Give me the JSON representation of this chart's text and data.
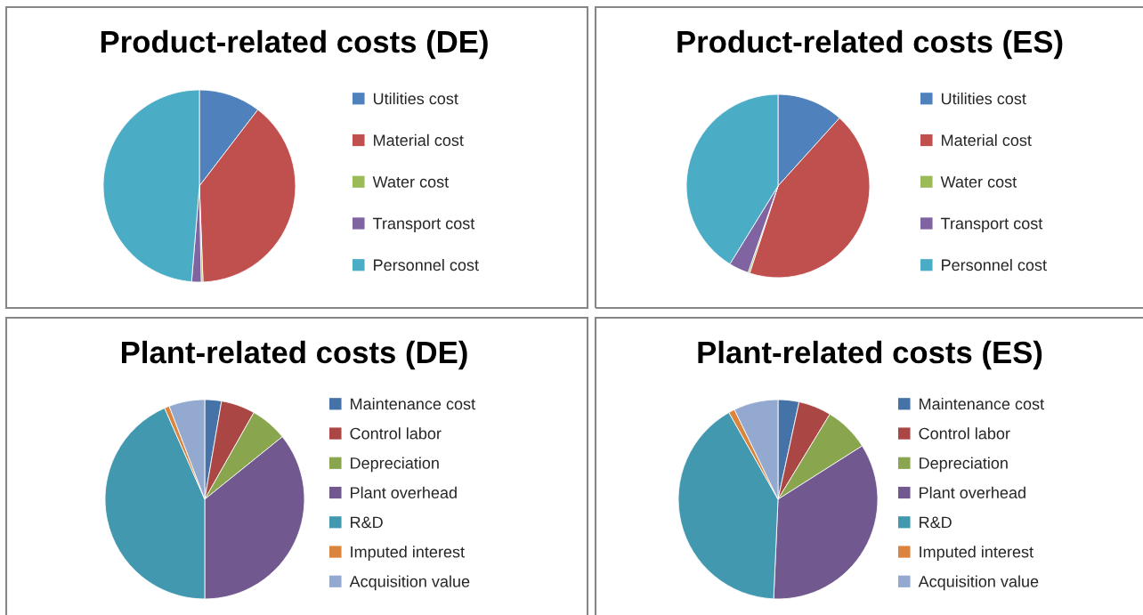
{
  "chart_data": [
    {
      "type": "pie",
      "title": "Product-related costs (DE)",
      "categories": [
        "Utilities cost",
        "Material cost",
        "Water cost",
        "Transport cost",
        "Personnel cost"
      ],
      "values": [
        10.4,
        39.0,
        0.3,
        1.6,
        48.7
      ],
      "colors": [
        "#4f81bd",
        "#c0504d",
        "#9bbb59",
        "#8064a2",
        "#4bacc6"
      ],
      "legend": "right"
    },
    {
      "type": "pie",
      "title": "Product-related costs (ES)",
      "categories": [
        "Utilities cost",
        "Material cost",
        "Water cost",
        "Transport cost",
        "Personnel cost"
      ],
      "values": [
        11.7,
        43.3,
        0.3,
        3.5,
        41.2
      ],
      "colors": [
        "#4f81bd",
        "#c0504d",
        "#9bbb59",
        "#8064a2",
        "#4bacc6"
      ],
      "legend": "right"
    },
    {
      "type": "pie",
      "title": "Plant-related costs (DE)",
      "categories": [
        "Maintenance cost",
        "Control labor",
        "Depreciation",
        "Plant overhead",
        "R&D",
        "Imputed interest",
        "Acquisition value"
      ],
      "values": [
        2.7,
        5.5,
        6.0,
        35.8,
        43.4,
        0.8,
        5.8
      ],
      "colors": [
        "#4572a7",
        "#aa4643",
        "#89a54e",
        "#71588f",
        "#4198af",
        "#db843d",
        "#93a9cf"
      ],
      "legend": "right"
    },
    {
      "type": "pie",
      "title": "Plant-related costs (ES)",
      "categories": [
        "Maintenance cost",
        "Control labor",
        "Depreciation",
        "Plant overhead",
        "R&D",
        "Imputed interest",
        "Acquisition value"
      ],
      "values": [
        3.4,
        5.3,
        7.3,
        34.7,
        41.1,
        1.0,
        7.2
      ],
      "colors": [
        "#4572a7",
        "#aa4643",
        "#89a54e",
        "#71588f",
        "#4198af",
        "#db843d",
        "#93a9cf"
      ],
      "legend": "right"
    }
  ]
}
